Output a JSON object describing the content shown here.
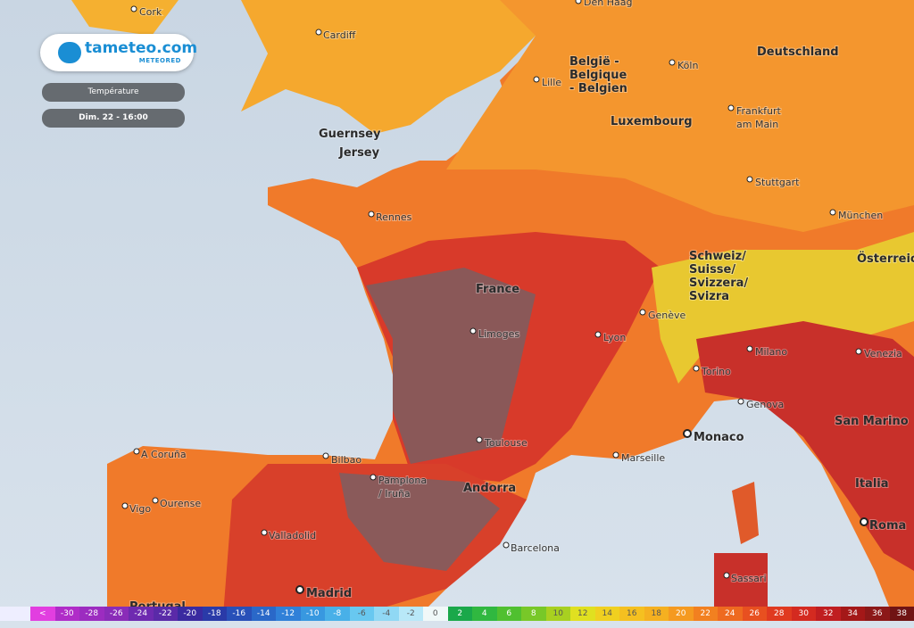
{
  "logo": {
    "name": "tameteo.com",
    "brand": "METEORED"
  },
  "controls": {
    "layer": "Température",
    "time": "Dim. 22 - 16:00"
  },
  "places": [
    {
      "name": "Cork"
    },
    {
      "name": "Cardiff"
    },
    {
      "name": "Den Haag"
    },
    {
      "lines": [
        "België -",
        "Belgique",
        "- Belgien"
      ]
    },
    {
      "name": "Lille"
    },
    {
      "name": "Köln"
    },
    {
      "name": "Deutschland"
    },
    {
      "name": "Luxembourg"
    },
    {
      "lines": [
        "Frankfurt",
        "am Main"
      ]
    },
    {
      "name": "Guernsey"
    },
    {
      "name": "Jersey"
    },
    {
      "name": "Stuttgart"
    },
    {
      "name": "Rennes"
    },
    {
      "name": "München"
    },
    {
      "lines": [
        "Schweiz/",
        "Suisse/",
        "Svizzera/",
        "Svizra"
      ]
    },
    {
      "name": "Österreich"
    },
    {
      "name": "France"
    },
    {
      "name": "Genève"
    },
    {
      "name": "Limoges"
    },
    {
      "name": "Lyon"
    },
    {
      "name": "Milano"
    },
    {
      "name": "Venezia"
    },
    {
      "name": "Torino"
    },
    {
      "name": "Genova"
    },
    {
      "name": "San Marino"
    },
    {
      "name": "Monaco"
    },
    {
      "name": "Toulouse"
    },
    {
      "name": "A Coruña"
    },
    {
      "name": "Bilbao"
    },
    {
      "name": "Marseille"
    },
    {
      "lines": [
        "Pamplona",
        "/ Iruña"
      ]
    },
    {
      "name": "Andorra"
    },
    {
      "name": "Italia"
    },
    {
      "name": "Vigo"
    },
    {
      "name": "Ourense"
    },
    {
      "name": "Valladolid"
    },
    {
      "name": "Barcelona"
    },
    {
      "name": "Roma"
    },
    {
      "name": "Sassari"
    },
    {
      "name": "Madrid"
    },
    {
      "name": "Portugal"
    }
  ],
  "legend": {
    "labels": [
      "<",
      -30,
      -28,
      -26,
      -24,
      -22,
      -20,
      -18,
      -16,
      -14,
      -12,
      -10,
      -8,
      -6,
      -4,
      -2,
      0,
      2,
      4,
      6,
      8,
      10,
      12,
      14,
      16,
      18,
      20,
      22,
      24,
      26,
      28,
      30,
      32,
      34,
      36,
      38
    ],
    "colors": [
      "#e23ee0",
      "#b02cc8",
      "#9c2cc0",
      "#8a2cb8",
      "#6e2ab0",
      "#5a2aa8",
      "#3a2aa0",
      "#2a3aa8",
      "#2850b8",
      "#2a68c8",
      "#3080d8",
      "#3898e0",
      "#48b0e8",
      "#68c8f0",
      "#90d8f4",
      "#b8e8f8",
      "#f0f8f8",
      "#1aa84a",
      "#30b840",
      "#50c030",
      "#78c828",
      "#a8d020",
      "#e0e020",
      "#f0d020",
      "#f5c020",
      "#f5b020",
      "#f59a20",
      "#f28020",
      "#ee6a20",
      "#e85020",
      "#e03a20",
      "#d42a20",
      "#c01e20",
      "#a41818",
      "#8c1818",
      "#701414"
    ]
  }
}
